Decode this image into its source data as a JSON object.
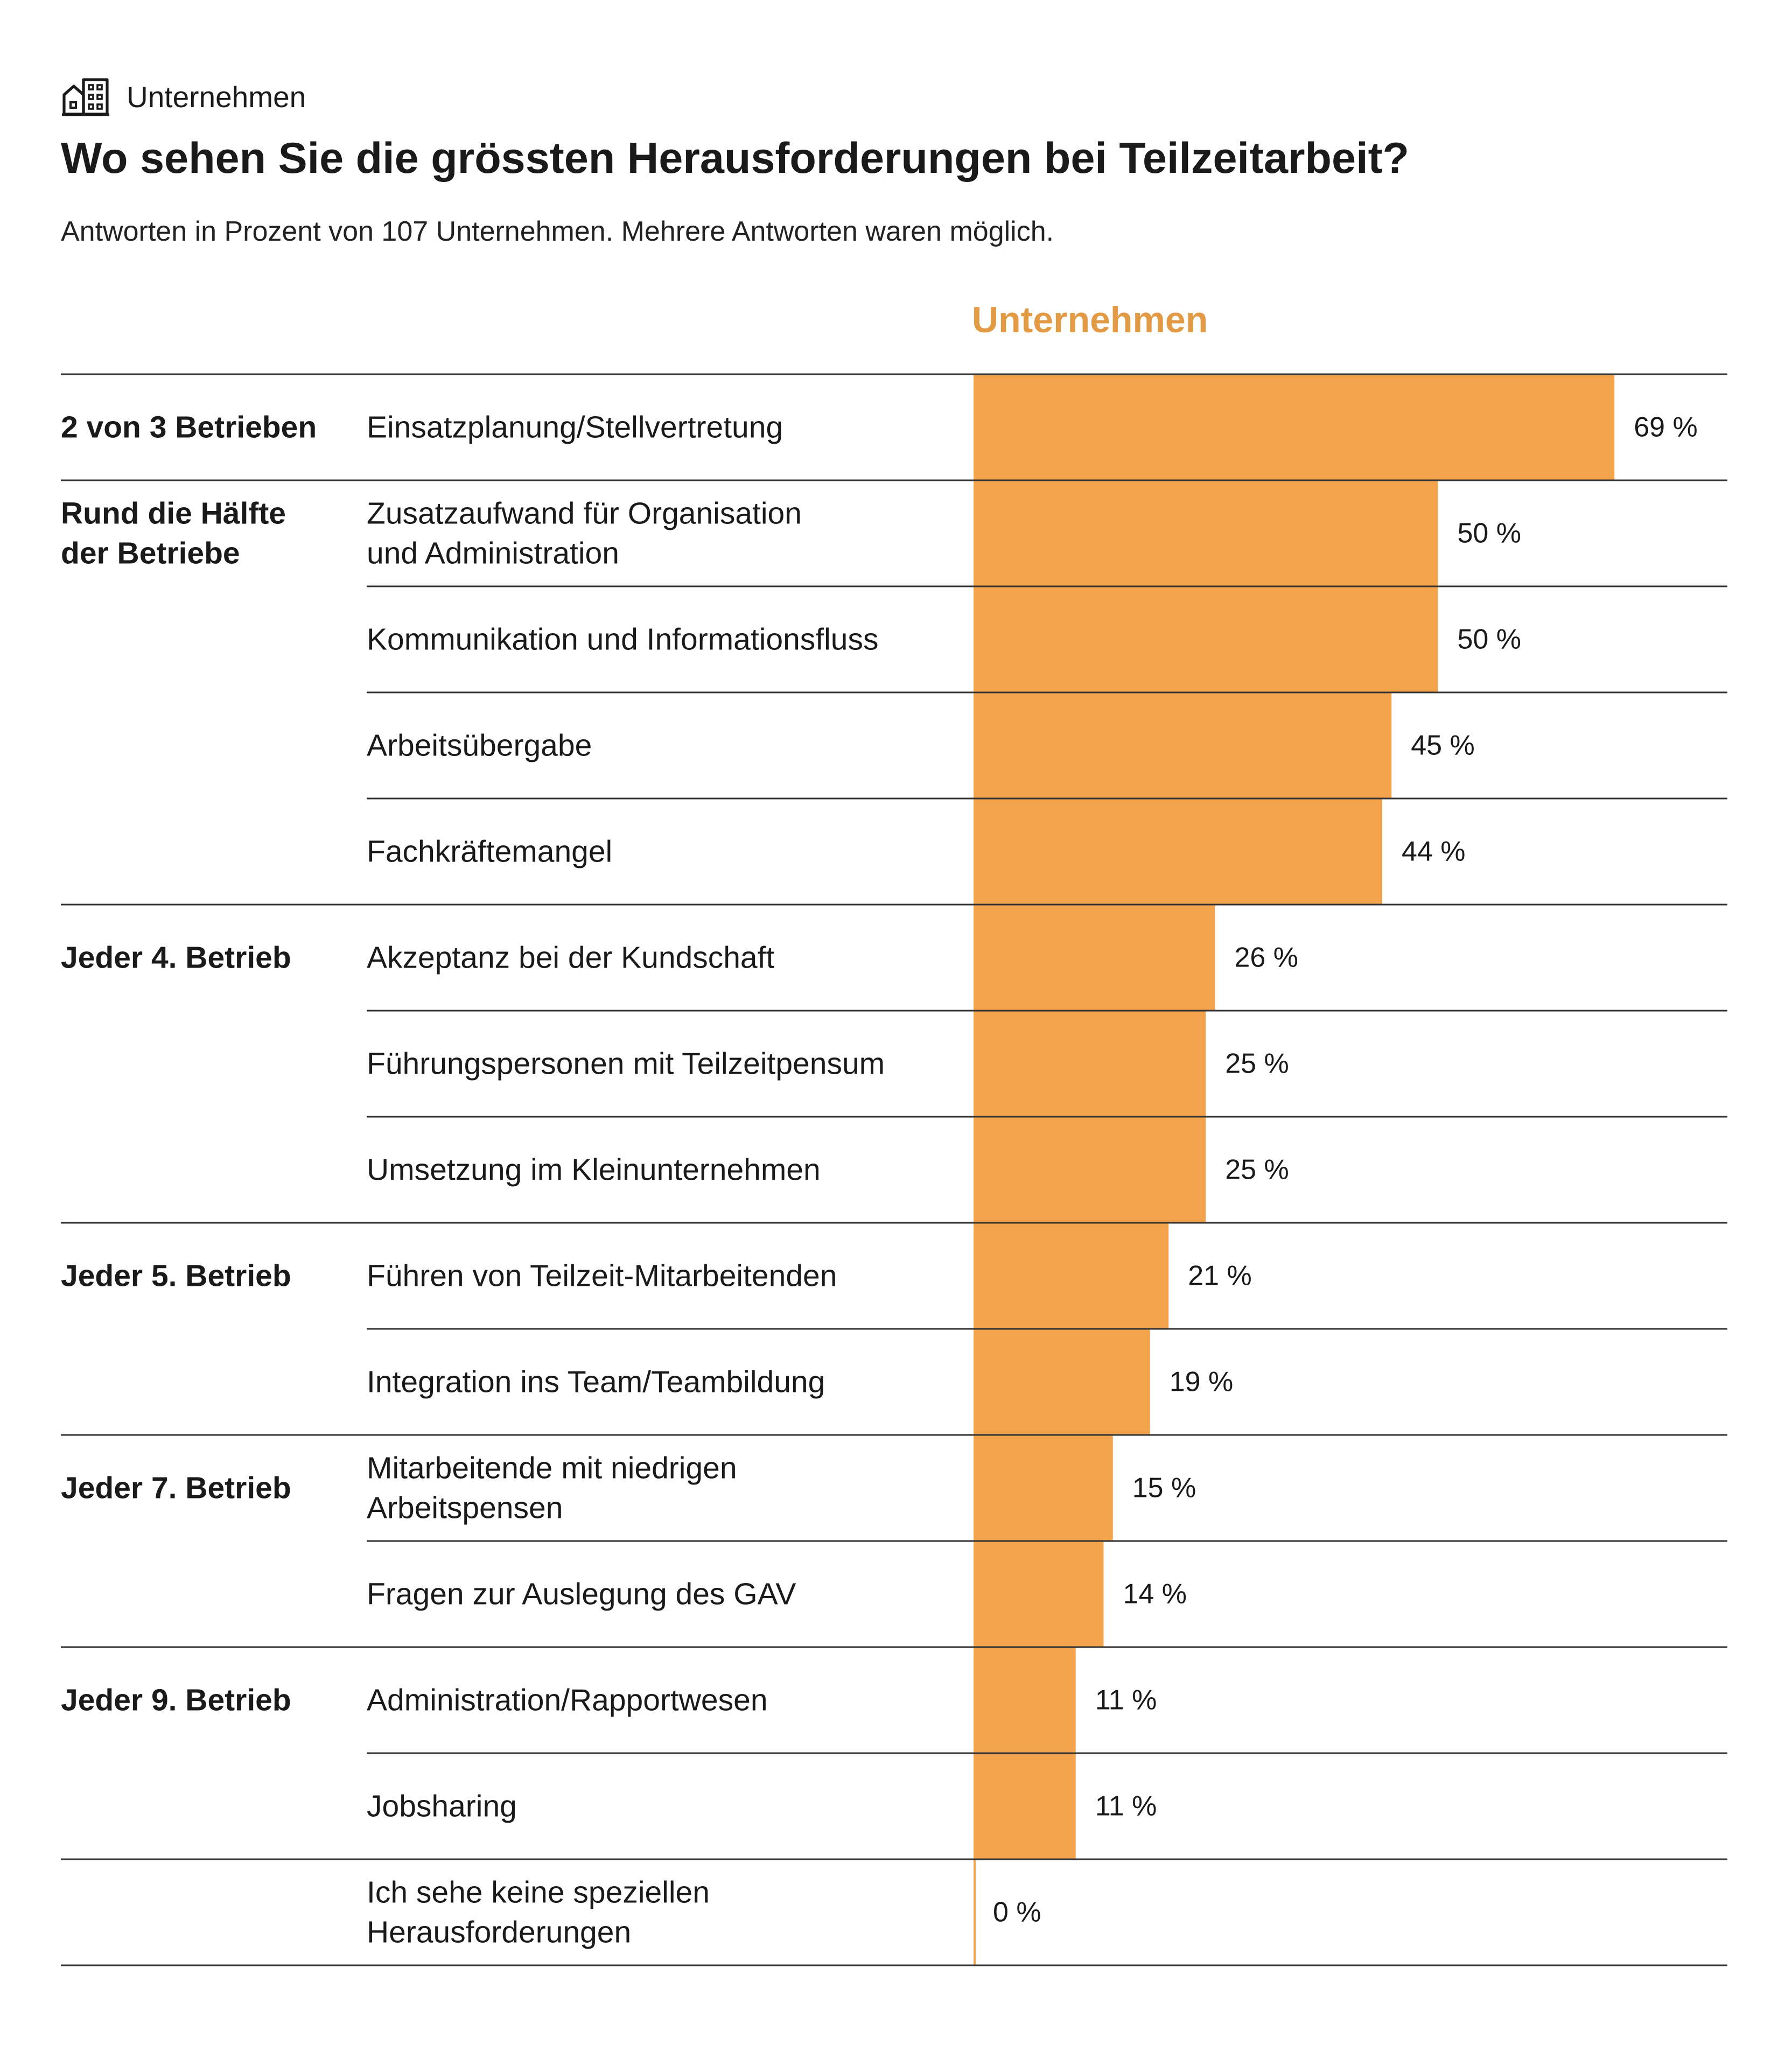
{
  "header": {
    "kicker_icon": "building-icon",
    "kicker": "Unternehmen",
    "title": "Wo sehen Sie die grössten Herausforderungen bei Teilzeitarbeit?",
    "subtitle": "Antworten in Prozent von 107 Unternehmen. Mehrere Antworten waren möglich."
  },
  "colors": {
    "bar": "#f2a34c",
    "header": "#e39a45",
    "rule": "#333333"
  },
  "chart_data": {
    "type": "bar",
    "orientation": "horizontal",
    "series_name": "Unternehmen",
    "unit": "%",
    "xlim": [
      0,
      100
    ],
    "groups": [
      {
        "label": [
          "2 von 3 Betrieben"
        ],
        "items": [
          {
            "label": [
              "Einsatzplanung/Stellvertretung"
            ],
            "value": 69
          }
        ]
      },
      {
        "label": [
          "Rund die Hälfte",
          "der Betriebe"
        ],
        "items": [
          {
            "label": [
              "Zusatzaufwand für Organisation",
              "und Administration"
            ],
            "value": 50
          },
          {
            "label": [
              "Kommunikation und Informationsfluss"
            ],
            "value": 50
          },
          {
            "label": [
              "Arbeitsübergabe"
            ],
            "value": 45
          },
          {
            "label": [
              "Fachkräftemangel"
            ],
            "value": 44
          }
        ]
      },
      {
        "label": [
          "Jeder 4. Betrieb"
        ],
        "items": [
          {
            "label": [
              "Akzeptanz bei der Kundschaft"
            ],
            "value": 26
          },
          {
            "label": [
              "Führungspersonen mit Teilzeitpensum"
            ],
            "value": 25
          },
          {
            "label": [
              "Umsetzung im Kleinunternehmen"
            ],
            "value": 25
          }
        ]
      },
      {
        "label": [
          "Jeder 5. Betrieb"
        ],
        "items": [
          {
            "label": [
              "Führen von Teilzeit-Mitarbeitenden"
            ],
            "value": 21
          },
          {
            "label": [
              "Integration ins Team/Teambildung"
            ],
            "value": 19
          }
        ]
      },
      {
        "label": [
          "Jeder 7. Betrieb"
        ],
        "items": [
          {
            "label": [
              "Mitarbeitende mit niedrigen",
              "Arbeitspensen"
            ],
            "value": 15
          },
          {
            "label": [
              "Fragen zur Auslegung des GAV"
            ],
            "value": 14
          }
        ]
      },
      {
        "label": [
          "Jeder 9. Betrieb"
        ],
        "items": [
          {
            "label": [
              "Administration/Rapportwesen"
            ],
            "value": 11
          },
          {
            "label": [
              "Jobsharing"
            ],
            "value": 11
          }
        ]
      },
      {
        "label": [],
        "items": [
          {
            "label": [
              "Ich sehe keine speziellen",
              "Herausforderungen"
            ],
            "value": 0
          }
        ]
      }
    ]
  }
}
